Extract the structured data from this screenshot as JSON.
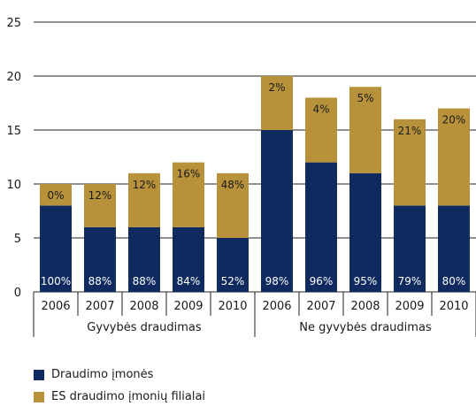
{
  "chart_data": {
    "type": "bar",
    "stacked": true,
    "ylim": [
      0,
      25
    ],
    "yticks": [
      0,
      5,
      10,
      15,
      20,
      25
    ],
    "grid": true,
    "legend_position": "bottom-left",
    "groups": [
      "Gyvybės draudimas",
      "Ne gyvybės draudimas"
    ],
    "categories": [
      "2006",
      "2007",
      "2008",
      "2009",
      "2010",
      "2006",
      "2007",
      "2008",
      "2009",
      "2010"
    ],
    "series": [
      {
        "name": "Draudimo įmonės",
        "color": "#0f2a5e",
        "values": [
          8,
          6,
          6,
          6,
          5,
          15,
          12,
          11,
          8,
          8
        ],
        "labels": [
          "100%",
          "88%",
          "88%",
          "84%",
          "52%",
          "98%",
          "96%",
          "95%",
          "79%",
          "80%"
        ]
      },
      {
        "name": "ES draudimo įmonių filialai",
        "color": "#b8923a",
        "values": [
          2,
          4,
          5,
          6,
          6,
          5,
          6,
          8,
          8,
          9
        ],
        "labels": [
          "0%",
          "12%",
          "12%",
          "16%",
          "48%",
          "2%",
          "4%",
          "5%",
          "21%",
          "20%"
        ]
      }
    ]
  }
}
